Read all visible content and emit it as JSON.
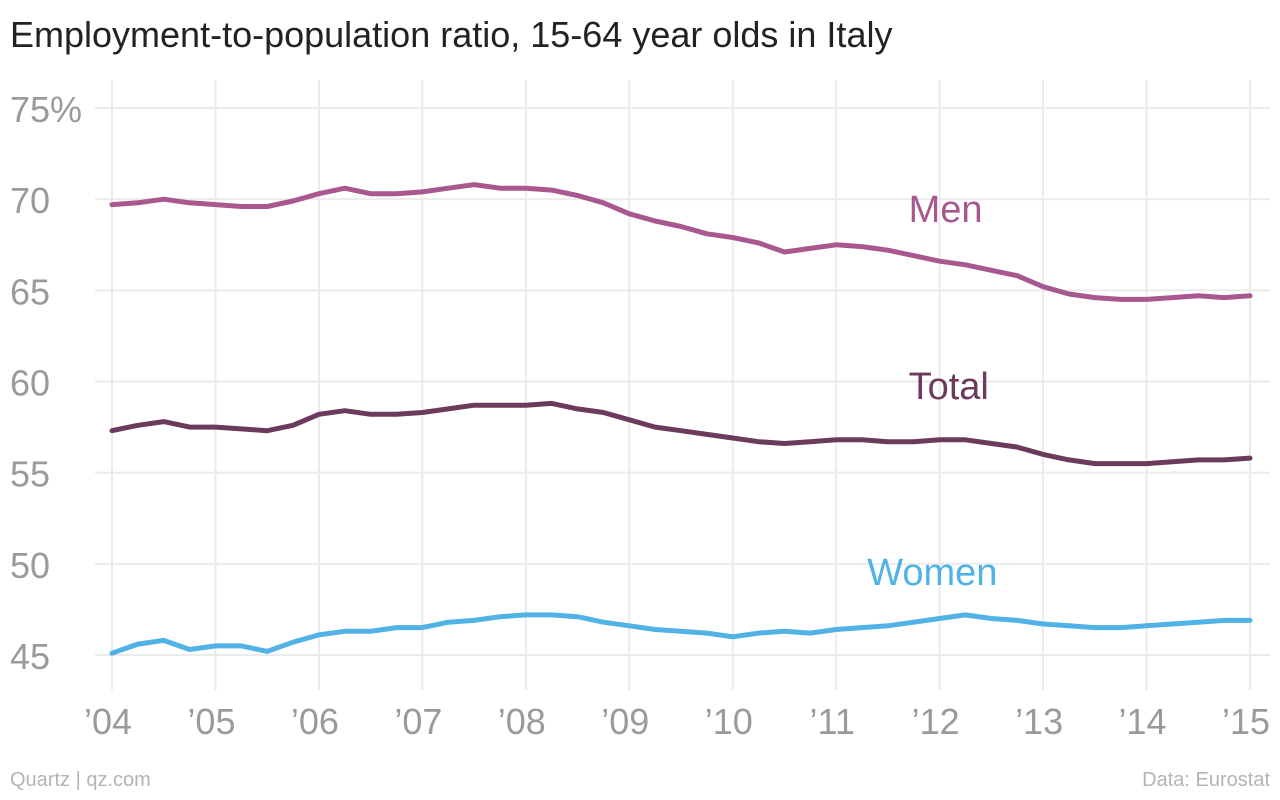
{
  "title": "Employment-to-population ratio, 15-64 year olds in Italy",
  "footer": {
    "credit": "Quartz | qz.com",
    "source": "Data: Eurostat"
  },
  "chart_data": {
    "type": "line",
    "title": "Employment-to-population ratio, 15-64 year olds in Italy",
    "xlabel": "",
    "ylabel": "",
    "ylim": [
      43,
      76
    ],
    "xlim": [
      2004,
      2015
    ],
    "grid": true,
    "x_ticks": [
      {
        "value": 2004,
        "label": "’04"
      },
      {
        "value": 2005,
        "label": "’05"
      },
      {
        "value": 2006,
        "label": "’06"
      },
      {
        "value": 2007,
        "label": "’07"
      },
      {
        "value": 2008,
        "label": "’08"
      },
      {
        "value": 2009,
        "label": "’09"
      },
      {
        "value": 2010,
        "label": "’10"
      },
      {
        "value": 2011,
        "label": "’11"
      },
      {
        "value": 2012,
        "label": "’12"
      },
      {
        "value": 2013,
        "label": "’13"
      },
      {
        "value": 2014,
        "label": "’14"
      },
      {
        "value": 2015,
        "label": "’15"
      }
    ],
    "y_ticks": [
      {
        "value": 75,
        "label": "75%"
      },
      {
        "value": 70,
        "label": "70"
      },
      {
        "value": 65,
        "label": "65"
      },
      {
        "value": 60,
        "label": "60"
      },
      {
        "value": 55,
        "label": "55"
      },
      {
        "value": 50,
        "label": "50"
      },
      {
        "value": 45,
        "label": "45"
      }
    ],
    "series": [
      {
        "name": "Men",
        "color": "#a8588e",
        "label_at": [
          2011.7,
          69.3
        ],
        "x": [
          2004.0,
          2004.25,
          2004.5,
          2004.75,
          2005.0,
          2005.25,
          2005.5,
          2005.75,
          2006.0,
          2006.25,
          2006.5,
          2006.75,
          2007.0,
          2007.25,
          2007.5,
          2007.75,
          2008.0,
          2008.25,
          2008.5,
          2008.75,
          2009.0,
          2009.25,
          2009.5,
          2009.75,
          2010.0,
          2010.25,
          2010.5,
          2010.75,
          2011.0,
          2011.25,
          2011.5,
          2011.75,
          2012.0,
          2012.25,
          2012.5,
          2012.75,
          2013.0,
          2013.25,
          2013.5,
          2013.75,
          2014.0,
          2014.25,
          2014.5,
          2014.75,
          2015.0
        ],
        "values": [
          69.7,
          69.8,
          70.0,
          69.8,
          69.7,
          69.6,
          69.6,
          69.9,
          70.3,
          70.6,
          70.3,
          70.3,
          70.4,
          70.6,
          70.8,
          70.6,
          70.6,
          70.5,
          70.2,
          69.8,
          69.2,
          68.8,
          68.5,
          68.1,
          67.9,
          67.6,
          67.1,
          67.3,
          67.5,
          67.4,
          67.2,
          66.9,
          66.6,
          66.4,
          66.1,
          65.8,
          65.2,
          64.8,
          64.6,
          64.5,
          64.5,
          64.6,
          64.7,
          64.6,
          64.7
        ]
      },
      {
        "name": "Total",
        "color": "#6b3a5c",
        "label_at": [
          2011.7,
          59.6
        ],
        "x": [
          2004.0,
          2004.25,
          2004.5,
          2004.75,
          2005.0,
          2005.25,
          2005.5,
          2005.75,
          2006.0,
          2006.25,
          2006.5,
          2006.75,
          2007.0,
          2007.25,
          2007.5,
          2007.75,
          2008.0,
          2008.25,
          2008.5,
          2008.75,
          2009.0,
          2009.25,
          2009.5,
          2009.75,
          2010.0,
          2010.25,
          2010.5,
          2010.75,
          2011.0,
          2011.25,
          2011.5,
          2011.75,
          2012.0,
          2012.25,
          2012.5,
          2012.75,
          2013.0,
          2013.25,
          2013.5,
          2013.75,
          2014.0,
          2014.25,
          2014.5,
          2014.75,
          2015.0
        ],
        "values": [
          57.3,
          57.6,
          57.8,
          57.5,
          57.5,
          57.4,
          57.3,
          57.6,
          58.2,
          58.4,
          58.2,
          58.2,
          58.3,
          58.5,
          58.7,
          58.7,
          58.7,
          58.8,
          58.5,
          58.3,
          57.9,
          57.5,
          57.3,
          57.1,
          56.9,
          56.7,
          56.6,
          56.7,
          56.8,
          56.8,
          56.7,
          56.7,
          56.8,
          56.8,
          56.6,
          56.4,
          56.0,
          55.7,
          55.5,
          55.5,
          55.5,
          55.6,
          55.7,
          55.7,
          55.8
        ]
      },
      {
        "name": "Women",
        "color": "#51b2e5",
        "label_at": [
          2011.3,
          49.4
        ],
        "x": [
          2004.0,
          2004.25,
          2004.5,
          2004.75,
          2005.0,
          2005.25,
          2005.5,
          2005.75,
          2006.0,
          2006.25,
          2006.5,
          2006.75,
          2007.0,
          2007.25,
          2007.5,
          2007.75,
          2008.0,
          2008.25,
          2008.5,
          2008.75,
          2009.0,
          2009.25,
          2009.5,
          2009.75,
          2010.0,
          2010.25,
          2010.5,
          2010.75,
          2011.0,
          2011.25,
          2011.5,
          2011.75,
          2012.0,
          2012.25,
          2012.5,
          2012.75,
          2013.0,
          2013.25,
          2013.5,
          2013.75,
          2014.0,
          2014.25,
          2014.5,
          2014.75,
          2015.0
        ],
        "values": [
          45.1,
          45.6,
          45.8,
          45.3,
          45.5,
          45.5,
          45.2,
          45.7,
          46.1,
          46.3,
          46.3,
          46.5,
          46.5,
          46.8,
          46.9,
          47.1,
          47.2,
          47.2,
          47.1,
          46.8,
          46.6,
          46.4,
          46.3,
          46.2,
          46.0,
          46.2,
          46.3,
          46.2,
          46.4,
          46.5,
          46.6,
          46.8,
          47.0,
          47.2,
          47.0,
          46.9,
          46.7,
          46.6,
          46.5,
          46.5,
          46.6,
          46.7,
          46.8,
          46.9,
          46.9
        ]
      }
    ]
  }
}
